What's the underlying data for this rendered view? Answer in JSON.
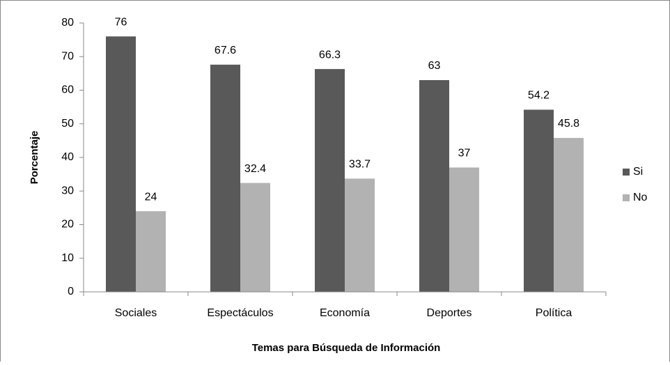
{
  "chart_data": {
    "type": "bar",
    "categories": [
      "Sociales",
      "Espectáculos",
      "Economía",
      "Deportes",
      "Política"
    ],
    "series": [
      {
        "name": "Si",
        "color": "#595959",
        "values": [
          76,
          67.6,
          66.3,
          63,
          54.2
        ]
      },
      {
        "name": "No",
        "color": "#b2b2b2",
        "values": [
          24,
          32.4,
          33.7,
          37,
          45.8
        ]
      }
    ],
    "ylim": [
      0,
      80
    ],
    "yticks": [
      0,
      10,
      20,
      30,
      40,
      50,
      60,
      70,
      80
    ],
    "xlabel": "Temas para Búsqueda de Información",
    "ylabel": "Porcentaje",
    "grid": false,
    "legend": "right"
  }
}
